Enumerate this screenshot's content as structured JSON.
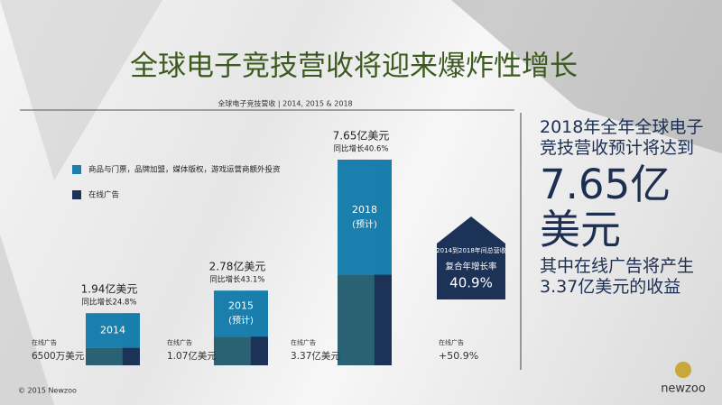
{
  "chart_data": {
    "type": "bar",
    "stacked": true,
    "title": "全球电子竞技营收将迎来爆炸性增长",
    "subtitle": "全球电子竞技营收 | 2014, 2015 & 2018",
    "categories": [
      "2014",
      "2015",
      "2018"
    ],
    "category_notes": [
      {
        "note_index": 1,
        "text": "(预计)"
      },
      {
        "note_index": 2,
        "text": "(预计)"
      }
    ],
    "totals": [
      "1.94亿美元",
      "2.78亿美元",
      "7.65亿美元"
    ],
    "growth": [
      "同比增长24.8%",
      "同比增长43.1%",
      "同比增长40.6%"
    ],
    "series": [
      {
        "name": "在线广告",
        "color": "#1c3256",
        "fill": "#2a6274",
        "values": [
          0.65,
          1.07,
          3.37
        ],
        "value_labels": [
          "6500万美元",
          "1.07亿美元",
          "3.37亿美元"
        ],
        "caption": "在线广告"
      },
      {
        "name": "商品与门票，品牌加盟，媒体版权，游戏运营商额外投资",
        "color": "#1a7fac",
        "fill": "#1a7fac",
        "values": [
          1.29,
          1.71,
          4.28
        ]
      }
    ],
    "cagr": {
      "caption": "2014到2018年间总营收",
      "label": "复合年增长率",
      "value": "40.9%"
    },
    "ad_growth": {
      "caption": "在线广告",
      "value": "+50.9%"
    }
  },
  "panel": {
    "lead": "2018年全年全球电子竞技营收预计将达到",
    "highlight": "7.65亿美元",
    "tail": "其中在线广告将产生3.37亿美元的收益"
  },
  "footer": {
    "copyright": "© 2015 Newzoo",
    "logo": "newzoo"
  }
}
